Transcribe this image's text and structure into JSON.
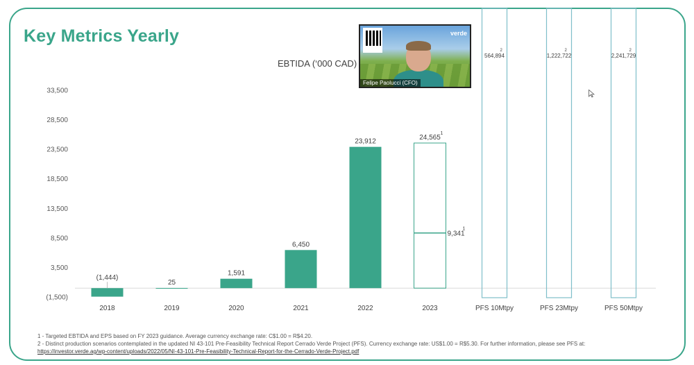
{
  "slide": {
    "title": "Key Metrics Yearly",
    "footnote_1": "1 - Targeted EBTIDA and EPS based on FY 2023 guidance. Average currency exchange rate: C$1.00 = R$4.20.",
    "footnote_2": "2 - Distinct production scenarios contemplated in the updated NI 43-101 Pre-Feasibility Technical Report Cerrado Verde Project (PFS). Currency exchange rate: US$1.00 = R$5.30. For further information, please see PFS at:",
    "footnote_link": "https://investor.verde.ag/wp-content/uploads/2022/05/NI-43-101-Pre-Feasibility-Technical-Report-for-the-Cerrado-Verde-Project.pdf"
  },
  "video": {
    "speaker_label": "Felipe Paolucci (CFO)",
    "logo_text": "verde"
  },
  "colors": {
    "accent": "#3aa58a",
    "bar": "#3aa58a",
    "outline_bar": "#3aa58a",
    "pfs_bar": "#7fbfc9"
  },
  "chart_data": {
    "type": "bar",
    "title": "EBTIDA (‘000 CAD)",
    "yticks": [
      "33,500",
      "28,500",
      "23,500",
      "18,500",
      "13,500",
      "8,500",
      "3,500",
      "(1,500)"
    ],
    "ylim": [
      -1500,
      33500
    ],
    "categories": [
      "2018",
      "2019",
      "2020",
      "2021",
      "2022",
      "2023",
      "PFS 10Mtpy",
      "PFS 23Mtpy",
      "PFS 50Mtpy"
    ],
    "values": [
      -1444,
      25,
      1591,
      6450,
      23912,
      24565,
      564894,
      1222722,
      2241729
    ],
    "value_labels": [
      "(1,444)",
      "25",
      "1,591",
      "6,450",
      "23,912",
      "24,565",
      "564,894",
      "1,222,722",
      "2,241,729"
    ],
    "styles": [
      "solid",
      "solid",
      "solid",
      "solid",
      "solid",
      "outline",
      "outline",
      "outline",
      "outline"
    ],
    "superscripts": [
      "",
      "",
      "",
      "",
      "",
      "1",
      "2",
      "2",
      "2"
    ],
    "marker_2023": {
      "value": 9341,
      "label": "9,341",
      "superscript": "1"
    }
  }
}
